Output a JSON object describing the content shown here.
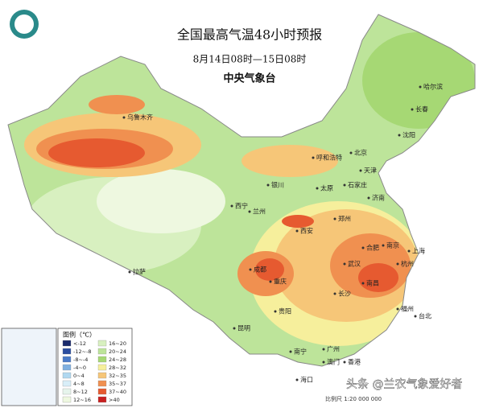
{
  "header": {
    "title": "全国最高气温48小时预报",
    "subtitle": "8月14日08时—15日08时",
    "agency": "中央气象台"
  },
  "cities": [
    "乌鲁木齐",
    "哈尔滨",
    "长春",
    "沈阳",
    "呼和浩特",
    "北京",
    "天津",
    "太原",
    "石家庄",
    "济南",
    "银川",
    "西宁",
    "兰州",
    "郑州",
    "西安",
    "合肥",
    "南京",
    "上海",
    "成都",
    "武汉",
    "杭州",
    "重庆",
    "长沙",
    "南昌",
    "拉萨",
    "贵阳",
    "福州",
    "昆明",
    "台北",
    "南宁",
    "广州",
    "澳门",
    "香港",
    "海口"
  ],
  "legend": {
    "title": "图例（℃）",
    "items": [
      {
        "label": "<-12",
        "color": "#1a2a6c"
      },
      {
        "label": "-12~-8",
        "color": "#2b4da0"
      },
      {
        "label": "-8~-4",
        "color": "#4a7bc8"
      },
      {
        "label": "-4~0",
        "color": "#7fb0e0"
      },
      {
        "label": "0~4",
        "color": "#b0d8f0"
      },
      {
        "label": "4~8",
        "color": "#d8eef8"
      },
      {
        "label": "8~12",
        "color": "#e6f4ec"
      },
      {
        "label": "12~16",
        "color": "#eef8e0"
      },
      {
        "label": "16~20",
        "color": "#d8f0c0"
      },
      {
        "label": "20~24",
        "color": "#bde49a"
      },
      {
        "label": "24~28",
        "color": "#a6d874"
      },
      {
        "label": "28~32",
        "color": "#f6ef9c"
      },
      {
        "label": "32~35",
        "color": "#f6c678"
      },
      {
        "label": "35~37",
        "color": "#f09050"
      },
      {
        "label": "37~40",
        "color": "#e65a30"
      },
      {
        "label": ">40",
        "color": "#c82020"
      }
    ]
  },
  "footer": {
    "scale": "比例尺 1:20 000 000",
    "watermark": "头条 @兰农气象爱好者"
  }
}
